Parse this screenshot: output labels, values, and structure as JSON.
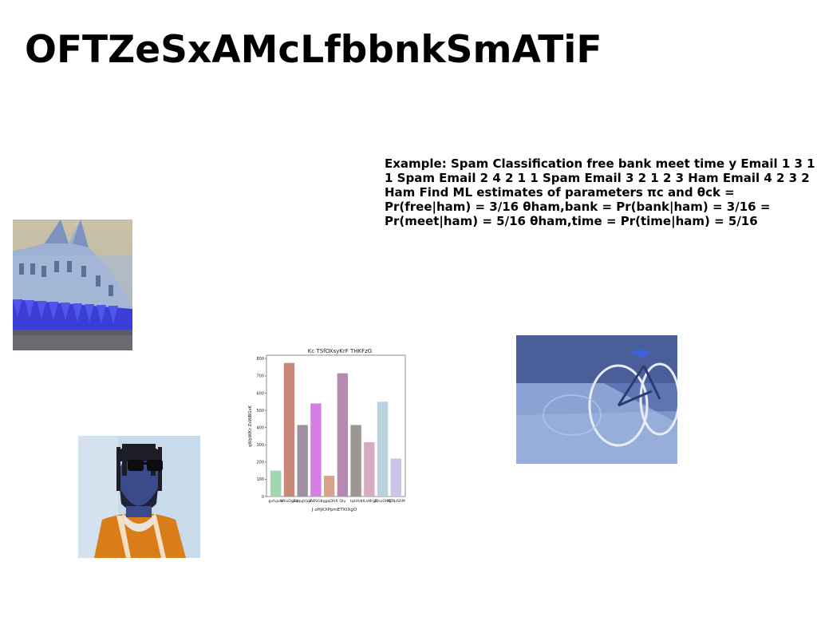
{
  "slide": {
    "title": "OFTZeSxAMcLfbbnkSmATiF",
    "body_text": "Example: Spam Classification free bank meet time y Email 1 3 1 1 Spam Email 2 4 2 1 1 Spam Email 3 2 1 2 3 Ham Email 4 2 3 2 Ham Find ML estimates of parameters πc and θck = Pr(free|ham) = 3/16 θham,bank = Pr(bank|ham) = 3/16 = Pr(meet|ham) = 5/16 θham,time = Pr(time|ham) = 5/16"
  },
  "chart_data": {
    "type": "bar",
    "title": "Kc TSfOXsyKrF THKFzG",
    "xlabel": "J oHjKXPpmETXtXgO",
    "ylabel": "qWpWKr ZsWBGsK",
    "categories": [
      "gvfujulo",
      "WkxDgEq",
      "jVdpgVjqZ",
      "mBSGk",
      "IrggqQHR",
      "Qlu",
      "tqHXd",
      "HLoMrgK",
      "ZtsvOHtJ",
      "MZNzShM"
    ],
    "values": [
      150,
      775,
      415,
      540,
      120,
      715,
      415,
      315,
      550,
      220
    ],
    "colors": [
      "#9fd8b0",
      "#c98778",
      "#9e8fa3",
      "#d57ee6",
      "#d5a48c",
      "#b788b0",
      "#9c9591",
      "#d7aac0",
      "#b8d3de",
      "#c9c5e6"
    ],
    "ylim": [
      0,
      820
    ],
    "yticks": [
      0,
      100,
      200,
      300,
      400,
      500,
      600,
      700,
      800
    ]
  }
}
